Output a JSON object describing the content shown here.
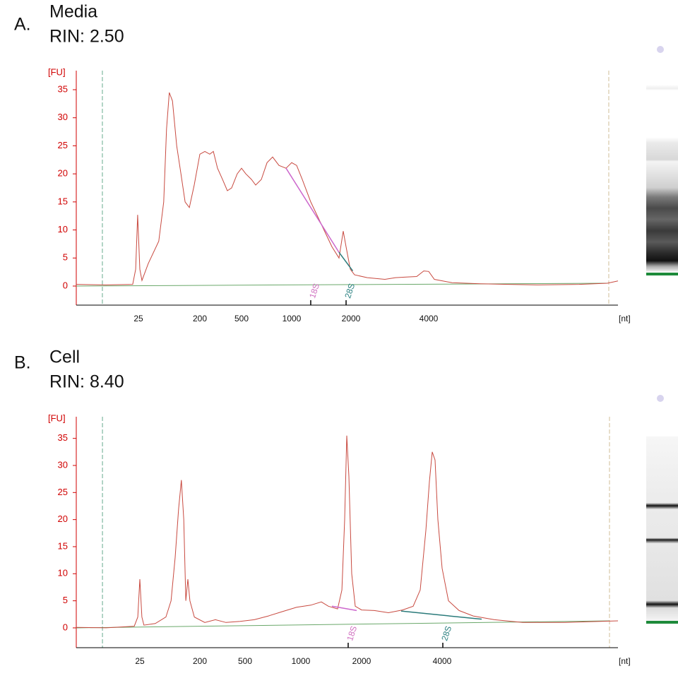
{
  "chart_data": [
    {
      "type": "line",
      "panel_label": "A.",
      "title": "Media",
      "subtitle": "RIN: 2.50",
      "y_label": "[FU]",
      "x_label": "[nt]",
      "x_scale": "piecewise",
      "color": "#c84a40",
      "axis_color": "#d00000",
      "xlim": [
        0,
        9000
      ],
      "ylim": [
        -3.4,
        38.4
      ],
      "xticks": [
        25,
        200,
        500,
        1000,
        2000,
        4000
      ],
      "yticks": [
        0,
        5,
        10,
        15,
        20,
        25,
        30,
        35
      ],
      "x": [
        0,
        11.9,
        22.7,
        23.9,
        24.7,
        29,
        35,
        53,
        83,
        97,
        105,
        113,
        122,
        134,
        146,
        158,
        170,
        184,
        200,
        236,
        271,
        297,
        327,
        363,
        398,
        429,
        469,
        500,
        542,
        599,
        641,
        697,
        754,
        810,
        873,
        944,
        1000,
        1083,
        1179,
        1321,
        1500,
        1679,
        1798,
        1869,
        1917,
        1988,
        2091,
        2418,
        2873,
        3145,
        3418,
        3691,
        3873,
        4000,
        4149,
        4616,
        5362,
        6108,
        6854,
        7974,
        8720,
        9000
      ],
      "values": [
        0.3,
        0.2,
        0.3,
        3,
        12.7,
        3,
        1,
        4,
        8,
        15,
        28,
        34.5,
        33,
        25,
        20,
        15,
        14,
        18,
        23.5,
        24,
        23.5,
        24,
        21,
        19,
        17,
        17.5,
        20,
        21,
        20,
        19,
        18,
        19,
        22,
        23,
        21.5,
        21,
        22,
        21.5,
        19,
        15,
        11,
        7,
        5,
        9.8,
        7,
        3,
        2,
        1.5,
        1.2,
        1.5,
        1.6,
        1.7,
        2.7,
        2.6,
        1.2,
        0.6,
        0.4,
        0.3,
        0.2,
        0.3,
        0.5,
        0.9
      ],
      "baseline": {
        "color": "#6aa86a",
        "x": [
          0,
          8720
        ],
        "values": [
          0,
          0.5
        ]
      },
      "marker_lines": [
        {
          "color": "#7fb8a0",
          "x": 10.5
        },
        {
          "color": "#d8c8a8",
          "x": 8757
        }
      ],
      "integration_lines": [
        {
          "color": "#cc66cc",
          "x": [
            944,
            1798
          ],
          "values": [
            21,
            6
          ]
        },
        {
          "color": "#2a7a7a",
          "x": [
            1798,
            2045
          ],
          "values": [
            6,
            2.7
          ]
        }
      ],
      "markers": [
        {
          "label": "18S",
          "x": 1321,
          "color": "#d070c0"
        },
        {
          "label": "28S",
          "x": 1917,
          "color": "#2a8080"
        }
      ]
    },
    {
      "type": "line",
      "panel_label": "B.",
      "title": "Cell",
      "subtitle": "RIN: 8.40",
      "y_label": "[FU]",
      "x_label": "[nt]",
      "x_scale": "piecewise",
      "color": "#c84a40",
      "axis_color": "#d00000",
      "xlim": [
        0,
        9000
      ],
      "ylim": [
        -3.66,
        39
      ],
      "xticks": [
        25,
        200,
        500,
        1000,
        2000,
        4000
      ],
      "yticks": [
        0,
        5,
        10,
        15,
        20,
        25,
        30,
        35
      ],
      "x": [
        0,
        11.7,
        22.8,
        24.2,
        25,
        31,
        37,
        70,
        101,
        116,
        128,
        138,
        146,
        153,
        159,
        165,
        171,
        184,
        233,
        303,
        373,
        467,
        582,
        709,
        835,
        962,
        1163,
        1337,
        1454,
        1605,
        1675,
        1721,
        1756,
        1791,
        1837,
        1895,
        2000,
        2316,
        2667,
        3017,
        3281,
        3456,
        3596,
        3684,
        3754,
        3825,
        3895,
        4000,
        4181,
        4482,
        4884,
        5486,
        6289,
        7494,
        8498,
        9000
      ],
      "values": [
        0.1,
        0,
        0.3,
        2,
        9,
        2,
        0.5,
        0.8,
        2,
        5,
        13,
        22,
        27.3,
        20,
        5,
        9,
        5,
        2,
        1,
        1.5,
        1,
        1.2,
        1.5,
        2.2,
        3,
        3.8,
        4.2,
        4.8,
        4,
        3.5,
        7,
        20,
        35.5,
        28,
        10,
        4,
        3.3,
        3.2,
        2.8,
        3.3,
        4,
        7,
        18,
        27,
        32.5,
        31,
        20,
        11,
        5,
        3.2,
        2.2,
        1.5,
        1,
        1,
        1.2,
        1.3
      ],
      "baseline": {
        "color": "#6aa86a",
        "x": [
          0,
          8759
        ],
        "values": [
          0,
          1.3
        ]
      },
      "marker_lines": [
        {
          "color": "#7fb8a0",
          "x": 10.3
        },
        {
          "color": "#d8c8a8",
          "x": 8759
        }
      ],
      "integration_lines": [
        {
          "color": "#cc66cc",
          "x": [
            1512,
            1919
          ],
          "values": [
            4,
            3.2
          ]
        },
        {
          "color": "#2a7a7a",
          "x": [
            2982,
            5124
          ],
          "values": [
            3.1,
            1.6
          ]
        }
      ],
      "markers": [
        {
          "label": "18S",
          "x": 1779,
          "color": "#d070c0"
        },
        {
          "label": "28S",
          "x": 4020,
          "color": "#2a8080"
        }
      ]
    }
  ]
}
